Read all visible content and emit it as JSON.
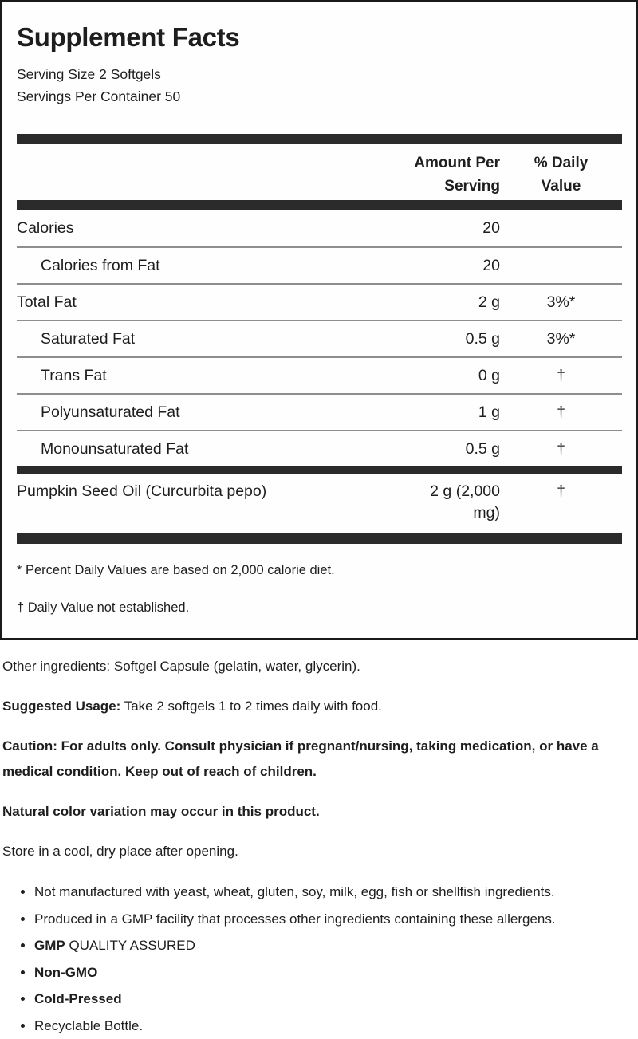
{
  "colors": {
    "bar": "#2b2b2b",
    "border": "#1a1a1a",
    "separator": "#8e8e8e",
    "text": "#1e1e1e"
  },
  "panel": {
    "title": "Supplement Facts",
    "serving_size": "Serving Size 2 Softgels",
    "servings_per_container": "Servings Per Container 50",
    "columns": {
      "amount_header": "Amount Per\nServing",
      "daily_value_header": "% Daily\nValue"
    },
    "rows": [
      {
        "label": "Calories",
        "amount": "20",
        "dv": "",
        "indent": false
      },
      {
        "label": "Calories from Fat",
        "amount": "20",
        "dv": "",
        "indent": true
      },
      {
        "label": "Total Fat",
        "amount": "2 g",
        "dv": "3%*",
        "indent": false
      },
      {
        "label": "Saturated Fat",
        "amount": "0.5 g",
        "dv": "3%*",
        "indent": true
      },
      {
        "label": "Trans Fat",
        "amount": "0 g",
        "dv": "†",
        "indent": true
      },
      {
        "label": "Polyunsaturated Fat",
        "amount": "1 g",
        "dv": "†",
        "indent": true
      },
      {
        "label": "Monounsaturated Fat",
        "amount": "0.5 g",
        "dv": "†",
        "indent": true
      }
    ],
    "ingredient_row": {
      "label": "Pumpkin Seed Oil (Curcurbita pepo)",
      "amount": "2 g (2,000\nmg)",
      "dv": "†"
    },
    "footnote_percent": "* Percent Daily Values are based on 2,000 calorie diet.",
    "footnote_dagger": "† Daily Value not established."
  },
  "info": {
    "other_ingredients": "Other ingredients: Softgel Capsule (gelatin, water, glycerin).",
    "suggested_usage_label": "Suggested Usage:",
    "suggested_usage_text": " Take 2 softgels 1 to 2 times daily with food.",
    "caution": "Caution: For adults only. Consult physician if pregnant/nursing, taking medication, or have a medical condition. Keep out of reach of children.",
    "natural_color": "Natural color variation may occur in this product.",
    "storage": "Store in a cool, dry place after opening.",
    "bullets": [
      {
        "bold": "",
        "text": "Not manufactured with yeast, wheat, gluten, soy, milk, egg, fish or shellfish ingredients."
      },
      {
        "bold": "",
        "text": "Produced in a GMP facility that processes other ingredients containing these allergens."
      },
      {
        "bold": "GMP",
        "text": " QUALITY ASSURED"
      },
      {
        "bold": "Non-GMO",
        "text": ""
      },
      {
        "bold": "Cold-Pressed",
        "text": ""
      },
      {
        "bold": "",
        "text": "Recyclable Bottle."
      }
    ]
  }
}
